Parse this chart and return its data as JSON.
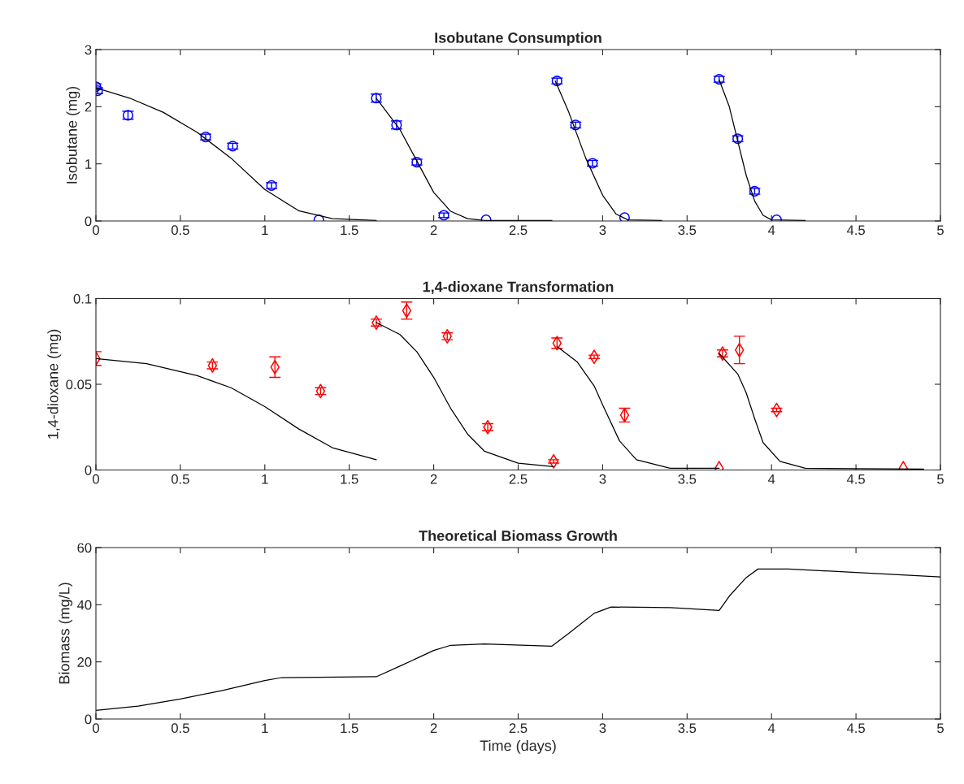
{
  "chart_data": [
    {
      "type": "scatter",
      "title": "Isobutane Consumption",
      "ylabel": "Isobutane (mg)",
      "xlim": [
        0,
        5
      ],
      "xticks": [
        0,
        0.5,
        1,
        1.5,
        2,
        2.5,
        3,
        3.5,
        4,
        4.5,
        5
      ],
      "ylim": [
        0,
        3
      ],
      "yticks": [
        0,
        1,
        2,
        3
      ],
      "grid": false,
      "legend": false,
      "series": [
        {
          "color": "#0000ff",
          "marker": "circle",
          "x": [
            0,
            0.01,
            0.19,
            0.65,
            0.81,
            1.04,
            1.32,
            1.66,
            1.78,
            1.9,
            2.06,
            2.31,
            2.73,
            2.84,
            2.94,
            3.13,
            3.69,
            3.8,
            3.9,
            4.03
          ],
          "values": [
            2.35,
            2.28,
            1.85,
            1.47,
            1.31,
            0.62,
            0.02,
            2.15,
            1.68,
            1.03,
            0.1,
            0.02,
            2.45,
            1.68,
            1.01,
            0.06,
            2.48,
            1.44,
            0.52,
            0.02
          ],
          "errors": [
            0.05,
            0.05,
            0.07,
            0.05,
            0.05,
            0.05,
            null,
            0.07,
            0.07,
            0.05,
            0.04,
            null,
            0.05,
            0.05,
            0.05,
            null,
            0.05,
            0.05,
            0.05,
            null
          ]
        },
        {
          "type": "line",
          "color": "#000000",
          "marker": "none",
          "line_style": "solid",
          "x": [
            0,
            0.2,
            0.4,
            0.6,
            0.8,
            1.0,
            1.2,
            1.4,
            1.66
          ],
          "values": [
            2.33,
            2.15,
            1.9,
            1.55,
            1.1,
            0.55,
            0.18,
            0.04,
            0.01
          ]
        },
        {
          "type": "line",
          "color": "#000000",
          "marker": "none",
          "line_style": "solid",
          "x": [
            1.66,
            1.8,
            1.9,
            2.0,
            2.1,
            2.2,
            2.3,
            2.7
          ],
          "values": [
            2.15,
            1.6,
            1.05,
            0.5,
            0.17,
            0.04,
            0.01,
            0.01
          ]
        },
        {
          "type": "line",
          "color": "#000000",
          "marker": "none",
          "line_style": "solid",
          "x": [
            2.72,
            2.8,
            2.9,
            3.0,
            3.08,
            3.15,
            3.35
          ],
          "values": [
            2.45,
            1.9,
            1.1,
            0.45,
            0.12,
            0.02,
            0.01
          ]
        },
        {
          "type": "line",
          "color": "#000000",
          "marker": "none",
          "line_style": "solid",
          "x": [
            3.69,
            3.75,
            3.8,
            3.85,
            3.9,
            3.95,
            4.0,
            4.2
          ],
          "values": [
            2.47,
            2.0,
            1.4,
            0.8,
            0.35,
            0.1,
            0.02,
            0.01
          ]
        }
      ]
    },
    {
      "type": "scatter",
      "title": "1,4-dioxane Transformation",
      "ylabel": "1,4-dioxane (mg)",
      "xlim": [
        0,
        5
      ],
      "xticks": [
        0,
        0.5,
        1,
        1.5,
        2,
        2.5,
        3,
        3.5,
        4,
        4.5,
        5
      ],
      "ylim": [
        0,
        0.1
      ],
      "yticks": [
        0,
        0.05,
        0.1
      ],
      "grid": false,
      "legend": false,
      "series": [
        {
          "color": "#ff0000",
          "marker": "diamond",
          "x": [
            0,
            0.69,
            1.06,
            1.33,
            1.66,
            1.84,
            2.08,
            2.32,
            2.71,
            2.73,
            2.95,
            3.13,
            3.69,
            3.71,
            3.81,
            4.03,
            4.78
          ],
          "values": [
            0.065,
            0.061,
            0.06,
            0.046,
            0.086,
            0.093,
            0.078,
            0.025,
            0.005,
            0.074,
            0.066,
            0.032,
            0.001,
            0.068,
            0.07,
            0.035,
            0.001
          ],
          "errors": [
            0.004,
            0.002,
            0.006,
            0.002,
            0.002,
            0.005,
            0.002,
            0.002,
            0.001,
            0.003,
            0.001,
            0.004,
            null,
            0.002,
            0.008,
            0.001,
            null
          ]
        },
        {
          "type": "line",
          "color": "#000000",
          "marker": "none",
          "line_style": "solid",
          "x": [
            0,
            0.3,
            0.6,
            0.8,
            1.0,
            1.2,
            1.4,
            1.66
          ],
          "values": [
            0.065,
            0.062,
            0.055,
            0.048,
            0.037,
            0.024,
            0.013,
            0.006
          ]
        },
        {
          "type": "line",
          "color": "#000000",
          "marker": "none",
          "line_style": "solid",
          "x": [
            1.66,
            1.8,
            1.9,
            2.0,
            2.1,
            2.2,
            2.3,
            2.5,
            2.71
          ],
          "values": [
            0.086,
            0.079,
            0.069,
            0.054,
            0.036,
            0.021,
            0.011,
            0.004,
            0.002
          ]
        },
        {
          "type": "line",
          "color": "#000000",
          "marker": "none",
          "line_style": "solid",
          "x": [
            2.73,
            2.85,
            2.95,
            3.0,
            3.1,
            3.2,
            3.4,
            3.69
          ],
          "values": [
            0.072,
            0.063,
            0.049,
            0.038,
            0.017,
            0.006,
            0.001,
            0.001
          ]
        },
        {
          "type": "line",
          "color": "#000000",
          "marker": "none",
          "line_style": "solid",
          "x": [
            3.69,
            3.8,
            3.85,
            3.9,
            3.95,
            4.05,
            4.2,
            4.9
          ],
          "values": [
            0.068,
            0.056,
            0.045,
            0.03,
            0.016,
            0.005,
            0.001,
            0.0005
          ]
        }
      ]
    },
    {
      "type": "line",
      "title": "Theoretical Biomass Growth",
      "xlabel": "Time (days)",
      "ylabel": "Biomass (mg/L)",
      "xlim": [
        0,
        5
      ],
      "xticks": [
        0,
        0.5,
        1,
        1.5,
        2,
        2.5,
        3,
        3.5,
        4,
        4.5,
        5
      ],
      "ylim": [
        0,
        60
      ],
      "yticks": [
        0,
        20,
        40,
        60
      ],
      "grid": false,
      "legend": false,
      "series": [
        {
          "color": "#000000",
          "marker": "none",
          "line_style": "solid",
          "x": [
            0,
            0.25,
            0.5,
            0.75,
            1.0,
            1.1,
            1.66,
            1.8,
            2.0,
            2.1,
            2.3,
            2.7,
            2.8,
            2.95,
            3.05,
            3.4,
            3.69,
            3.75,
            3.85,
            3.92,
            4.1,
            4.5,
            5.0
          ],
          "values": [
            3,
            4.5,
            7,
            10,
            13.5,
            14.5,
            14.8,
            18.5,
            24,
            25.8,
            26.3,
            25.5,
            30,
            37,
            39.2,
            39,
            38,
            43,
            49.5,
            52.5,
            52.5,
            51.3,
            49.7
          ]
        }
      ]
    }
  ]
}
